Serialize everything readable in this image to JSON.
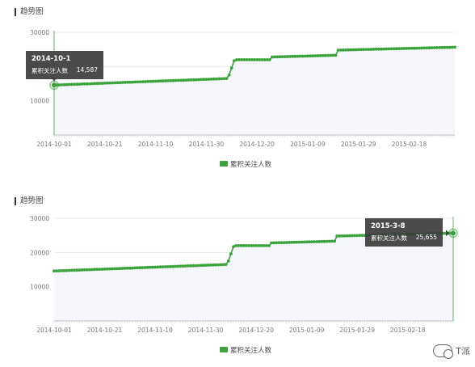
{
  "chart_data": [
    {
      "type": "line",
      "title": "趋势图",
      "series": [
        {
          "name": "累积关注人数",
          "color": "#3aa33a"
        }
      ],
      "x_ticks": [
        "2014-10-01",
        "2014-10-21",
        "2014-11-10",
        "2014-11-30",
        "2014-12-20",
        "2015-01-09",
        "2015-01-29",
        "2015-02-18"
      ],
      "y_ticks": [
        "30000",
        "20000",
        "10000"
      ],
      "ylim": [
        0,
        30000
      ],
      "grid": true,
      "legend": "bottom-center",
      "segments": [
        {
          "start": "2014-10-01",
          "end": "2014-12-08",
          "from": 14587,
          "to": 16500
        },
        {
          "start": "2014-12-09",
          "end": "2014-12-11",
          "from": 17500,
          "to": 21700
        },
        {
          "start": "2014-12-12",
          "end": "2014-12-25",
          "from": 22000,
          "to": 22000
        },
        {
          "start": "2014-12-26",
          "end": "2015-01-20",
          "from": 22800,
          "to": 23300
        },
        {
          "start": "2015-01-21",
          "end": "2015-03-08",
          "from": 24800,
          "to": 25655
        }
      ],
      "tooltip": {
        "date": "2014-10-1",
        "label": "累积关注人数",
        "value": "14,587"
      }
    },
    {
      "type": "line",
      "title": "趋势图",
      "series": [
        {
          "name": "累积关注人数",
          "color": "#3aa33a"
        }
      ],
      "x_ticks": [
        "2014-10-01",
        "2014-10-21",
        "2014-11-10",
        "2014-11-30",
        "2014-12-20",
        "2015-01-09",
        "2015-01-29",
        "2015-02-18"
      ],
      "y_ticks": [
        "30000",
        "20000",
        "10000"
      ],
      "ylim": [
        0,
        30000
      ],
      "grid": true,
      "legend": "bottom-center",
      "segments": [
        {
          "start": "2014-10-01",
          "end": "2014-12-08",
          "from": 14587,
          "to": 16500
        },
        {
          "start": "2014-12-09",
          "end": "2014-12-11",
          "from": 17500,
          "to": 21700
        },
        {
          "start": "2014-12-12",
          "end": "2014-12-25",
          "from": 22000,
          "to": 22000
        },
        {
          "start": "2014-12-26",
          "end": "2015-01-20",
          "from": 22800,
          "to": 23300
        },
        {
          "start": "2015-01-21",
          "end": "2015-03-08",
          "from": 24800,
          "to": 25655
        }
      ],
      "tooltip": {
        "date": "2015-3-8",
        "label": "累积关注人数",
        "value": "25,655"
      }
    }
  ],
  "watermark": {
    "text": "T派"
  }
}
